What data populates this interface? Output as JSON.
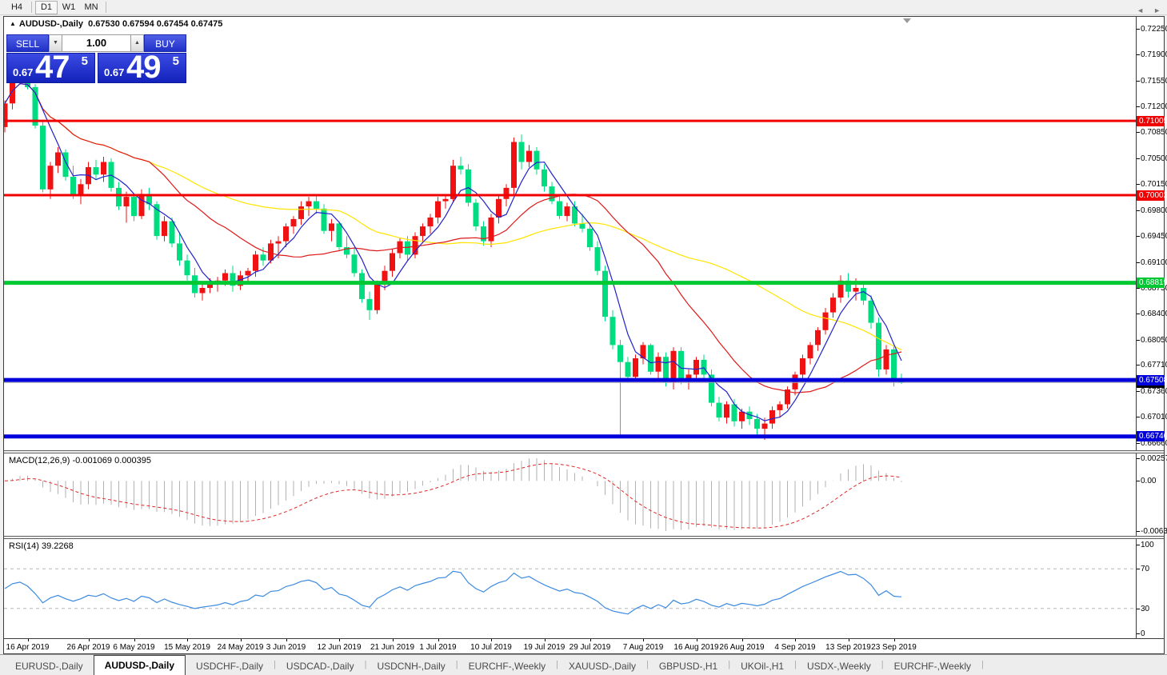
{
  "toolbar": {
    "timeframes": [
      {
        "label": "H4",
        "active": false
      },
      {
        "label": "D1",
        "active": true
      },
      {
        "label": "W1",
        "active": false
      },
      {
        "label": "MN",
        "active": false
      }
    ]
  },
  "window": {
    "title_marker": "▲",
    "title": "AUDUSD-,Daily",
    "title_ohlc": "0.67530 0.67594 0.67454 0.67475"
  },
  "trade_panel": {
    "sell_label": "SELL",
    "buy_label": "BUY",
    "volume": "1.00",
    "spinner_down": "▼",
    "spinner_up": "▲",
    "sell_price": {
      "prefix": "0.67",
      "big": "47",
      "sup": "5"
    },
    "buy_price": {
      "prefix": "0.67",
      "big": "49",
      "sup": "5"
    }
  },
  "price_axis": {
    "ticks": [
      "0.72250",
      "0.71900",
      "0.71550",
      "0.71200",
      "0.70850",
      "0.70500",
      "0.70150",
      "0.69800",
      "0.69450",
      "0.69100",
      "0.68750",
      "0.68400",
      "0.68050",
      "0.67710",
      "0.67360",
      "0.67010",
      "0.66660"
    ]
  },
  "levels": [
    {
      "price": 0.71005,
      "label": "0.71005",
      "color": "#f00000",
      "width": 3
    },
    {
      "price": 0.70002,
      "label": "0.70002",
      "color": "#f00000",
      "width": 3
    },
    {
      "price": 0.68819,
      "label": "0.68819",
      "color": "#00c832",
      "width": 5
    },
    {
      "price": 0.67508,
      "label": "0.67508",
      "color": "#0000dc",
      "width": 5
    },
    {
      "price": 0.66746,
      "label": "0.66746",
      "color": "#0000dc",
      "width": 5
    }
  ],
  "current_price": {
    "value": 0.67475,
    "label": "0.67475",
    "line_color": "#a8a8a8",
    "box_color": "#000000"
  },
  "chart_data": {
    "type": "candlestick",
    "symbol": "AUDUSD-",
    "timeframe": "Daily",
    "price_max": 0.7242,
    "price_min": 0.6657,
    "candle_up_color": "#f01212",
    "candle_down_color": "#00dc80",
    "moving_averages": [
      {
        "period": 45,
        "color": "#ffe400"
      },
      {
        "period": 20,
        "color": "#e01818"
      },
      {
        "period": 5,
        "color": "#2222cc"
      }
    ],
    "candles": [
      [
        0.7092,
        0.7128,
        0.7085,
        0.7124
      ],
      [
        0.7124,
        0.7162,
        0.7116,
        0.7158
      ],
      [
        0.7158,
        0.7178,
        0.715,
        0.717
      ],
      [
        0.717,
        0.7176,
        0.7143,
        0.7146
      ],
      [
        0.7146,
        0.715,
        0.709,
        0.7094
      ],
      [
        0.7094,
        0.71,
        0.7004,
        0.7008
      ],
      [
        0.7008,
        0.7045,
        0.6995,
        0.704
      ],
      [
        0.704,
        0.7065,
        0.703,
        0.7058
      ],
      [
        0.7058,
        0.7062,
        0.702,
        0.7025
      ],
      [
        0.7025,
        0.704,
        0.6995,
        0.7
      ],
      [
        0.7,
        0.7022,
        0.6988,
        0.7015
      ],
      [
        0.7015,
        0.7045,
        0.7008,
        0.7038
      ],
      [
        0.7038,
        0.7048,
        0.7022,
        0.7028
      ],
      [
        0.7028,
        0.7052,
        0.7018,
        0.7045
      ],
      [
        0.7045,
        0.705,
        0.7005,
        0.701
      ],
      [
        0.701,
        0.7018,
        0.698,
        0.6985
      ],
      [
        0.6985,
        0.7005,
        0.6963,
        0.6998
      ],
      [
        0.6998,
        0.7002,
        0.6965,
        0.6972
      ],
      [
        0.6972,
        0.7008,
        0.6968,
        0.7002
      ],
      [
        0.7002,
        0.701,
        0.698,
        0.6988
      ],
      [
        0.6988,
        0.6992,
        0.694,
        0.6945
      ],
      [
        0.6945,
        0.6972,
        0.6938,
        0.6965
      ],
      [
        0.6965,
        0.697,
        0.693,
        0.6935
      ],
      [
        0.6935,
        0.695,
        0.6905,
        0.6912
      ],
      [
        0.6912,
        0.692,
        0.6885,
        0.6892
      ],
      [
        0.6892,
        0.6902,
        0.6862,
        0.6868
      ],
      [
        0.6868,
        0.688,
        0.6858,
        0.6875
      ],
      [
        0.6875,
        0.6888,
        0.6868,
        0.688
      ],
      [
        0.688,
        0.689,
        0.687,
        0.6885
      ],
      [
        0.6885,
        0.69,
        0.6878,
        0.6895
      ],
      [
        0.6895,
        0.6905,
        0.687,
        0.6878
      ],
      [
        0.6878,
        0.6898,
        0.6872,
        0.6892
      ],
      [
        0.6892,
        0.6902,
        0.6882,
        0.6898
      ],
      [
        0.6898,
        0.6925,
        0.689,
        0.692
      ],
      [
        0.692,
        0.693,
        0.6905,
        0.6912
      ],
      [
        0.6912,
        0.694,
        0.6908,
        0.6935
      ],
      [
        0.6935,
        0.6945,
        0.6915,
        0.6938
      ],
      [
        0.6938,
        0.6962,
        0.693,
        0.6958
      ],
      [
        0.6958,
        0.6972,
        0.6948,
        0.6968
      ],
      [
        0.6968,
        0.6992,
        0.696,
        0.6985
      ],
      [
        0.6985,
        0.6998,
        0.6972,
        0.6992
      ],
      [
        0.6992,
        0.7,
        0.6975,
        0.6982
      ],
      [
        0.6982,
        0.6988,
        0.6948,
        0.6952
      ],
      [
        0.6952,
        0.6968,
        0.6938,
        0.6962
      ],
      [
        0.6962,
        0.6965,
        0.6925,
        0.693
      ],
      [
        0.693,
        0.6945,
        0.6915,
        0.692
      ],
      [
        0.692,
        0.6928,
        0.689,
        0.6895
      ],
      [
        0.6895,
        0.69,
        0.6855,
        0.686
      ],
      [
        0.686,
        0.687,
        0.6832,
        0.6845
      ],
      [
        0.6845,
        0.6885,
        0.684,
        0.688
      ],
      [
        0.688,
        0.6905,
        0.6872,
        0.6898
      ],
      [
        0.6898,
        0.6928,
        0.689,
        0.6922
      ],
      [
        0.6922,
        0.6942,
        0.6915,
        0.6938
      ],
      [
        0.6938,
        0.6945,
        0.6912,
        0.692
      ],
      [
        0.692,
        0.695,
        0.6915,
        0.6945
      ],
      [
        0.6945,
        0.6962,
        0.6935,
        0.6958
      ],
      [
        0.6958,
        0.6975,
        0.6948,
        0.697
      ],
      [
        0.697,
        0.6998,
        0.6962,
        0.6992
      ],
      [
        0.6992,
        0.7,
        0.6982,
        0.6995
      ],
      [
        0.6995,
        0.7048,
        0.699,
        0.704
      ],
      [
        0.704,
        0.7052,
        0.7028,
        0.7035
      ],
      [
        0.7035,
        0.7042,
        0.6985,
        0.699
      ],
      [
        0.699,
        0.6995,
        0.6952,
        0.6958
      ],
      [
        0.6958,
        0.6965,
        0.6932,
        0.6938
      ],
      [
        0.6938,
        0.6975,
        0.693,
        0.697
      ],
      [
        0.697,
        0.7,
        0.6962,
        0.6995
      ],
      [
        0.6995,
        0.7015,
        0.6985,
        0.701
      ],
      [
        0.701,
        0.7078,
        0.7,
        0.7072
      ],
      [
        0.7072,
        0.7082,
        0.7035,
        0.7045
      ],
      [
        0.7045,
        0.7068,
        0.7038,
        0.706
      ],
      [
        0.706,
        0.7065,
        0.7028,
        0.7035
      ],
      [
        0.7035,
        0.7042,
        0.7005,
        0.7012
      ],
      [
        0.7012,
        0.7018,
        0.6988,
        0.6992
      ],
      [
        0.6992,
        0.7,
        0.6968,
        0.6972
      ],
      [
        0.6972,
        0.699,
        0.6965,
        0.6985
      ],
      [
        0.6985,
        0.6992,
        0.6958,
        0.6962
      ],
      [
        0.6962,
        0.6975,
        0.695,
        0.6955
      ],
      [
        0.6955,
        0.6962,
        0.6925,
        0.693
      ],
      [
        0.693,
        0.6938,
        0.6892,
        0.6898
      ],
      [
        0.6898,
        0.6905,
        0.683,
        0.6836
      ],
      [
        0.6836,
        0.6845,
        0.6792,
        0.6798
      ],
      [
        0.6798,
        0.6805,
        0.6677,
        0.6775
      ],
      [
        0.6775,
        0.6782,
        0.6748,
        0.6755
      ],
      [
        0.6755,
        0.6785,
        0.675,
        0.678
      ],
      [
        0.678,
        0.6802,
        0.6772,
        0.6798
      ],
      [
        0.6798,
        0.68,
        0.6758,
        0.6762
      ],
      [
        0.6762,
        0.6788,
        0.6752,
        0.6782
      ],
      [
        0.6782,
        0.6788,
        0.6742,
        0.6748
      ],
      [
        0.6748,
        0.6795,
        0.6738,
        0.679
      ],
      [
        0.679,
        0.6795,
        0.6745,
        0.6752
      ],
      [
        0.6752,
        0.6765,
        0.6738,
        0.6758
      ],
      [
        0.6758,
        0.6782,
        0.675,
        0.6778
      ],
      [
        0.6778,
        0.6785,
        0.6752,
        0.6758
      ],
      [
        0.6758,
        0.6765,
        0.6715,
        0.672
      ],
      [
        0.672,
        0.6728,
        0.6695,
        0.67
      ],
      [
        0.67,
        0.6722,
        0.6692,
        0.6718
      ],
      [
        0.6718,
        0.6725,
        0.6688,
        0.6695
      ],
      [
        0.6695,
        0.6712,
        0.6685,
        0.6708
      ],
      [
        0.6708,
        0.6715,
        0.669,
        0.6698
      ],
      [
        0.6698,
        0.6705,
        0.6675,
        0.6685
      ],
      [
        0.6685,
        0.67,
        0.667,
        0.6692
      ],
      [
        0.6692,
        0.6715,
        0.6685,
        0.671
      ],
      [
        0.671,
        0.6722,
        0.67,
        0.6718
      ],
      [
        0.6718,
        0.6742,
        0.6712,
        0.6738
      ],
      [
        0.6738,
        0.6762,
        0.673,
        0.6758
      ],
      [
        0.6758,
        0.6785,
        0.6752,
        0.678
      ],
      [
        0.678,
        0.6802,
        0.6772,
        0.6798
      ],
      [
        0.6798,
        0.6822,
        0.679,
        0.6818
      ],
      [
        0.6818,
        0.6848,
        0.6812,
        0.6842
      ],
      [
        0.6842,
        0.6868,
        0.6835,
        0.6862
      ],
      [
        0.6862,
        0.6892,
        0.6855,
        0.6885
      ],
      [
        0.6885,
        0.6895,
        0.6862,
        0.687
      ],
      [
        0.687,
        0.6888,
        0.6858,
        0.6875
      ],
      [
        0.6875,
        0.6882,
        0.6852,
        0.6858
      ],
      [
        0.6858,
        0.6865,
        0.682,
        0.6828
      ],
      [
        0.6828,
        0.6835,
        0.6755,
        0.6765
      ],
      [
        0.6765,
        0.6798,
        0.6758,
        0.6792
      ],
      [
        0.6792,
        0.6796,
        0.6742,
        0.6752
      ],
      [
        0.6753,
        0.67594,
        0.67454,
        0.67475
      ]
    ],
    "date_labels": [
      {
        "text": "16 Apr 2019",
        "i": 3
      },
      {
        "text": "26 Apr 2019",
        "i": 11
      },
      {
        "text": "6 May 2019",
        "i": 17
      },
      {
        "text": "15 May 2019",
        "i": 24
      },
      {
        "text": "24 May 2019",
        "i": 31
      },
      {
        "text": "3 Jun 2019",
        "i": 37
      },
      {
        "text": "12 Jun 2019",
        "i": 44
      },
      {
        "text": "21 Jun 2019",
        "i": 51
      },
      {
        "text": "1 Jul 2019",
        "i": 57
      },
      {
        "text": "10 Jul 2019",
        "i": 64
      },
      {
        "text": "19 Jul 2019",
        "i": 71
      },
      {
        "text": "29 Jul 2019",
        "i": 77
      },
      {
        "text": "7 Aug 2019",
        "i": 84
      },
      {
        "text": "16 Aug 2019",
        "i": 91
      },
      {
        "text": "26 Aug 2019",
        "i": 97
      },
      {
        "text": "4 Sep 2019",
        "i": 104
      },
      {
        "text": "13 Sep 2019",
        "i": 111
      },
      {
        "text": "23 Sep 2019",
        "i": 117
      }
    ]
  },
  "macd": {
    "label": "MACD(12,26,9)",
    "value": "-0.001069",
    "signal_value": "0.000395",
    "fast": 12,
    "slow": 26,
    "signal": 9,
    "axis_top": "0.002574",
    "axis_zero": "0.00",
    "axis_bottom": "-0.006326",
    "histogram_color": "#b2b2b2",
    "line_color": "#e02828"
  },
  "rsi": {
    "label": "RSI(14)",
    "value": "39.2268",
    "period": 14,
    "axis": [
      "100",
      "70",
      "30",
      "0"
    ],
    "levels": [
      70,
      30
    ],
    "level_color": "#b8b8b8",
    "line_color": "#3c8ae0"
  },
  "tabs": {
    "items": [
      {
        "label": "EURUSD-,Daily",
        "active": false
      },
      {
        "label": "AUDUSD-,Daily",
        "active": true
      },
      {
        "label": "USDCHF-,Daily",
        "active": false
      },
      {
        "label": "USDCAD-,Daily",
        "active": false
      },
      {
        "label": "USDCNH-,Daily",
        "active": false
      },
      {
        "label": "EURCHF-,Weekly",
        "active": false
      },
      {
        "label": "XAUUSD-,Daily",
        "active": false
      },
      {
        "label": "GBPUSD-,H1",
        "active": false
      },
      {
        "label": "UKOil-,H1",
        "active": false
      },
      {
        "label": "USDX-,Weekly",
        "active": false
      },
      {
        "label": "EURCHF-,Weekly",
        "active": false
      }
    ],
    "nav_left": "◄",
    "nav_right": "►"
  }
}
